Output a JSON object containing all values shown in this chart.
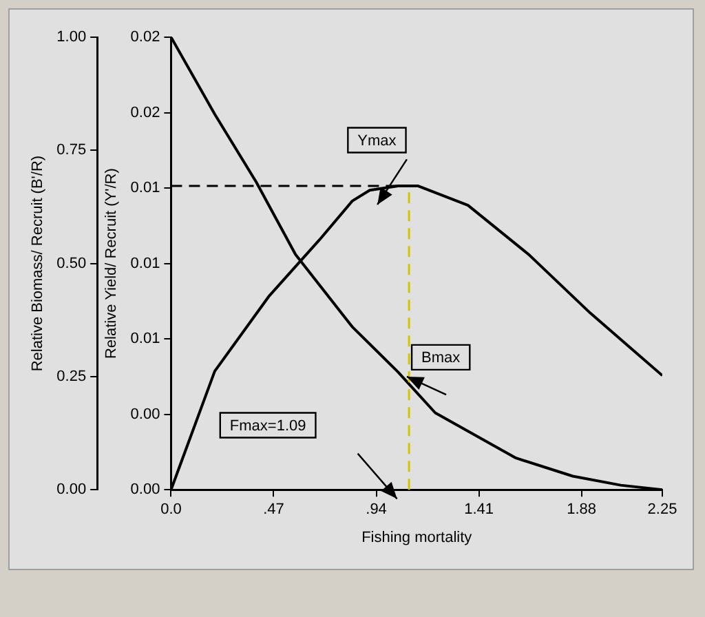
{
  "chart_data": {
    "type": "line",
    "xlabel": "Fishing mortality",
    "ylabel": "Relative Biomass/ Recruit (B'/R)",
    "y2label": "Relative Yield/ Recruit (Y'/R)",
    "series": [
      {
        "color": "#000000",
        "x": [
          0,
          0.2,
          0.39,
          0.57,
          0.83,
          1.04,
          1.21,
          1.58,
          1.84,
          2.06,
          2.25
        ],
        "values": [
          1.0,
          0.83,
          0.68,
          0.52,
          0.36,
          0.26,
          0.17,
          0.07,
          0.03,
          0.01,
          0
        ]
      },
      {
        "color": "#000000",
        "axis": "y2",
        "x": [
          0,
          0.2,
          0.45,
          0.68,
          0.83,
          0.91,
          1.04,
          1.13,
          1.36,
          1.64,
          1.92,
          2.25
        ],
        "values": [
          0,
          0.0055,
          0.009,
          0.0116,
          0.0134,
          0.0139,
          0.0141,
          0.0141,
          0.0132,
          0.0109,
          0.0082,
          0.0053
        ]
      }
    ],
    "xlim": [
      0,
      2.25
    ],
    "xticks": [
      {
        "value": 0,
        "label": "0.0"
      },
      {
        "value": 0.47,
        "label": ".47"
      },
      {
        "value": 0.94,
        "label": ".94"
      },
      1.41,
      1.88,
      2.25
    ],
    "ylim": [
      0,
      1
    ],
    "yticks": [
      {
        "value": 0,
        "label": "0.00"
      },
      {
        "value": 0.25,
        "label": "0.25"
      },
      {
        "value": 0.5,
        "label": "0.50"
      },
      {
        "value": 0.75,
        "label": "0.75"
      },
      {
        "value": 1,
        "label": "1.00"
      }
    ],
    "y2lim": [
      0,
      0.021
    ],
    "y2ticks": [
      {
        "value": 0,
        "label": "0.00"
      },
      {
        "value": 0.0035,
        "label": "0.00"
      },
      {
        "value": 0.007,
        "label": "0.01"
      },
      {
        "value": 0.0105,
        "label": "0.01"
      },
      {
        "value": 0.014,
        "label": "0.01"
      },
      {
        "value": 0.0175,
        "label": "0.02"
      },
      {
        "value": 0.021,
        "label": "0.02"
      }
    ],
    "ref_lines": [
      {
        "axis": "y2",
        "value": 0.0141,
        "color": "#000000",
        "line_style": "dashed"
      },
      {
        "axis": "x",
        "value": 1.09,
        "color": "#d4c400",
        "line_style": "dashed"
      }
    ],
    "annotations": [
      "Ymax",
      "Bmax",
      "Fmax=1.09"
    ],
    "grid": false,
    "legend": false,
    "marker": "none",
    "line_style": "solid"
  }
}
